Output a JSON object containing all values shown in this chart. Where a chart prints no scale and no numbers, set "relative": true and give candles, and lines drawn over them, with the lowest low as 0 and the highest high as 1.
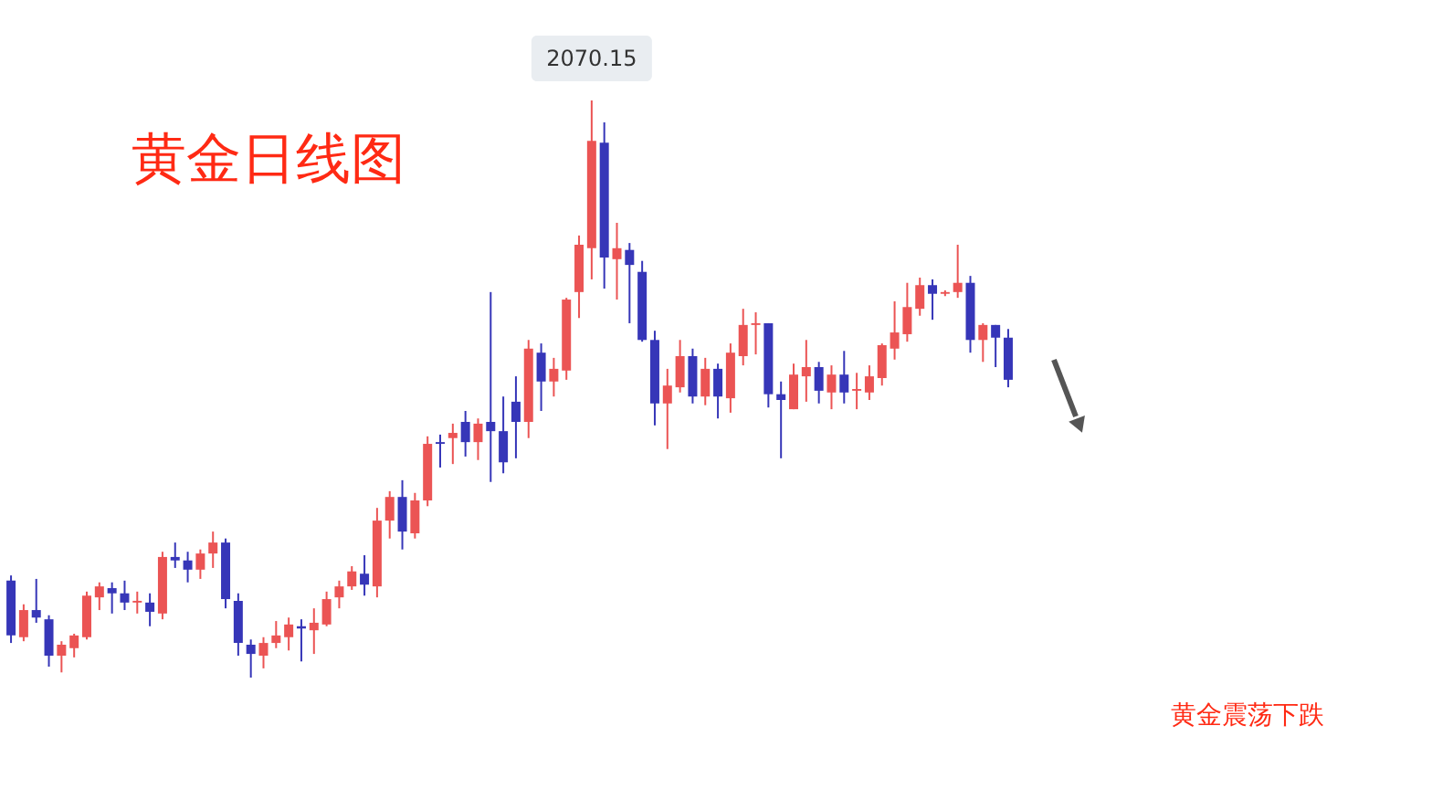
{
  "chart_data": {
    "type": "candlestick",
    "title": "黄金日线图",
    "relative": true,
    "categories": [
      null,
      null,
      null,
      null,
      null,
      null,
      null,
      null,
      null,
      null,
      null,
      null,
      null,
      null,
      null,
      null,
      null,
      null,
      null,
      null,
      null,
      null,
      null,
      null,
      null,
      null,
      null,
      null,
      null,
      null,
      null,
      null,
      null,
      null,
      null,
      null,
      null,
      null,
      null,
      null,
      null,
      null,
      null,
      null,
      null,
      null,
      null,
      null,
      null,
      null,
      null,
      null,
      null,
      null,
      null,
      null,
      null,
      null,
      null,
      null,
      null,
      null,
      null,
      null,
      null,
      null,
      null,
      null,
      null,
      null,
      null,
      null,
      null,
      null,
      null,
      null,
      null,
      null,
      null,
      null
    ],
    "ohlc": [
      [
        0.168,
        0.177,
        0.06,
        0.073
      ],
      [
        0.07,
        0.127,
        0.063,
        0.117
      ],
      [
        0.117,
        0.171,
        0.095,
        0.104
      ],
      [
        0.101,
        0.108,
        0.019,
        0.038
      ],
      [
        0.038,
        0.063,
        0.009,
        0.057
      ],
      [
        0.051,
        0.076,
        0.035,
        0.073
      ],
      [
        0.07,
        0.149,
        0.066,
        0.142
      ],
      [
        0.139,
        0.165,
        0.117,
        0.158
      ],
      [
        0.155,
        0.165,
        0.111,
        0.146
      ],
      [
        0.146,
        0.168,
        0.117,
        0.13
      ],
      [
        0.13,
        0.149,
        0.111,
        0.133
      ],
      [
        0.13,
        0.146,
        0.089,
        0.114
      ],
      [
        0.111,
        0.218,
        0.101,
        0.209
      ],
      [
        0.209,
        0.234,
        0.19,
        0.203
      ],
      [
        0.203,
        0.218,
        0.165,
        0.187
      ],
      [
        0.187,
        0.222,
        0.171,
        0.215
      ],
      [
        0.215,
        0.253,
        0.19,
        0.234
      ],
      [
        0.234,
        0.241,
        0.12,
        0.136
      ],
      [
        0.133,
        0.146,
        0.038,
        0.06
      ],
      [
        0.057,
        0.066,
        0.0,
        0.041
      ],
      [
        0.038,
        0.07,
        0.016,
        0.06
      ],
      [
        0.06,
        0.098,
        0.051,
        0.073
      ],
      [
        0.07,
        0.104,
        0.047,
        0.092
      ],
      [
        0.089,
        0.101,
        0.028,
        0.085
      ],
      [
        0.082,
        0.12,
        0.041,
        0.095
      ],
      [
        0.092,
        0.149,
        0.089,
        0.136
      ],
      [
        0.139,
        0.168,
        0.12,
        0.158
      ],
      [
        0.158,
        0.193,
        0.152,
        0.184
      ],
      [
        0.18,
        0.212,
        0.142,
        0.161
      ],
      [
        0.158,
        0.294,
        0.139,
        0.272
      ],
      [
        0.272,
        0.323,
        0.241,
        0.313
      ],
      [
        0.313,
        0.342,
        0.222,
        0.253
      ],
      [
        0.25,
        0.32,
        0.241,
        0.307
      ],
      [
        0.307,
        0.418,
        0.297,
        0.405
      ],
      [
        0.408,
        0.421,
        0.364,
        0.405
      ],
      [
        0.415,
        0.44,
        0.37,
        0.424
      ],
      [
        0.443,
        0.462,
        0.383,
        0.408
      ],
      [
        0.408,
        0.449,
        0.377,
        0.44
      ],
      [
        0.443,
        0.668,
        0.339,
        0.427
      ],
      [
        0.427,
        0.487,
        0.354,
        0.373
      ],
      [
        0.478,
        0.522,
        0.38,
        0.443
      ],
      [
        0.443,
        0.585,
        0.415,
        0.57
      ],
      [
        0.563,
        0.579,
        0.462,
        0.513
      ],
      [
        0.513,
        0.554,
        0.487,
        0.535
      ],
      [
        0.532,
        0.658,
        0.516,
        0.655
      ],
      [
        0.668,
        0.766,
        0.623,
        0.75
      ],
      [
        0.744,
        1.0,
        0.69,
        0.93
      ],
      [
        0.927,
        0.962,
        0.674,
        0.728
      ],
      [
        0.725,
        0.788,
        0.655,
        0.744
      ],
      [
        0.741,
        0.753,
        0.614,
        0.715
      ],
      [
        0.703,
        0.722,
        0.582,
        0.585
      ],
      [
        0.585,
        0.601,
        0.437,
        0.475
      ],
      [
        0.475,
        0.535,
        0.396,
        0.506
      ],
      [
        0.503,
        0.585,
        0.494,
        0.557
      ],
      [
        0.557,
        0.57,
        0.475,
        0.487
      ],
      [
        0.487,
        0.554,
        0.472,
        0.535
      ],
      [
        0.535,
        0.544,
        0.449,
        0.487
      ],
      [
        0.484,
        0.579,
        0.459,
        0.563
      ],
      [
        0.557,
        0.639,
        0.541,
        0.611
      ],
      [
        0.611,
        0.633,
        0.56,
        0.614
      ],
      [
        0.614,
        0.614,
        0.468,
        0.491
      ],
      [
        0.491,
        0.513,
        0.38,
        0.481
      ],
      [
        0.465,
        0.544,
        0.465,
        0.525
      ],
      [
        0.522,
        0.585,
        0.478,
        0.538
      ],
      [
        0.538,
        0.547,
        0.475,
        0.497
      ],
      [
        0.494,
        0.541,
        0.465,
        0.525
      ],
      [
        0.525,
        0.566,
        0.475,
        0.494
      ],
      [
        0.497,
        0.528,
        0.465,
        0.5
      ],
      [
        0.494,
        0.541,
        0.481,
        0.522
      ],
      [
        0.519,
        0.579,
        0.506,
        0.576
      ],
      [
        0.57,
        0.652,
        0.551,
        0.598
      ],
      [
        0.595,
        0.684,
        0.582,
        0.642
      ],
      [
        0.639,
        0.693,
        0.627,
        0.68
      ],
      [
        0.68,
        0.69,
        0.62,
        0.665
      ],
      [
        0.665,
        0.671,
        0.661,
        0.668
      ],
      [
        0.668,
        0.75,
        0.658,
        0.684
      ],
      [
        0.684,
        0.696,
        0.563,
        0.585
      ],
      [
        0.585,
        0.614,
        0.547,
        0.611
      ],
      [
        0.611,
        0.611,
        0.538,
        0.589
      ],
      [
        0.589,
        0.604,
        0.503,
        0.516
      ]
    ],
    "colors": [
      "#3636b8",
      "#eb5454",
      "#3636b8",
      "#3636b8",
      "#eb5454",
      "#eb5454",
      "#eb5454",
      "#eb5454",
      "#3636b8",
      "#3636b8",
      "#eb5454",
      "#3636b8",
      "#eb5454",
      "#3636b8",
      "#3636b8",
      "#eb5454",
      "#eb5454",
      "#3636b8",
      "#3636b8",
      "#3636b8",
      "#eb5454",
      "#eb5454",
      "#eb5454",
      "#3636b8",
      "#eb5454",
      "#eb5454",
      "#eb5454",
      "#eb5454",
      "#3636b8",
      "#eb5454",
      "#eb5454",
      "#3636b8",
      "#eb5454",
      "#eb5454",
      "#3636b8",
      "#eb5454",
      "#3636b8",
      "#eb5454",
      "#3636b8",
      "#3636b8",
      "#3636b8",
      "#eb5454",
      "#3636b8",
      "#eb5454",
      "#eb5454",
      "#eb5454",
      "#eb5454",
      "#3636b8",
      "#eb5454",
      "#3636b8",
      "#3636b8",
      "#3636b8",
      "#eb5454",
      "#eb5454",
      "#3636b8",
      "#eb5454",
      "#3636b8",
      "#eb5454",
      "#eb5454",
      "#eb5454",
      "#3636b8",
      "#3636b8",
      "#eb5454",
      "#eb5454",
      "#3636b8",
      "#eb5454",
      "#3636b8",
      "#eb5454",
      "#eb5454",
      "#eb5454",
      "#eb5454",
      "#eb5454",
      "#eb5454",
      "#3636b8",
      "#eb5454",
      "#eb5454",
      "#3636b8",
      "#eb5454",
      "#3636b8",
      "#3636b8"
    ],
    "annotations": [
      {
        "text": "2070.15",
        "y": 1.0
      },
      "黄金震荡下跌"
    ]
  }
}
